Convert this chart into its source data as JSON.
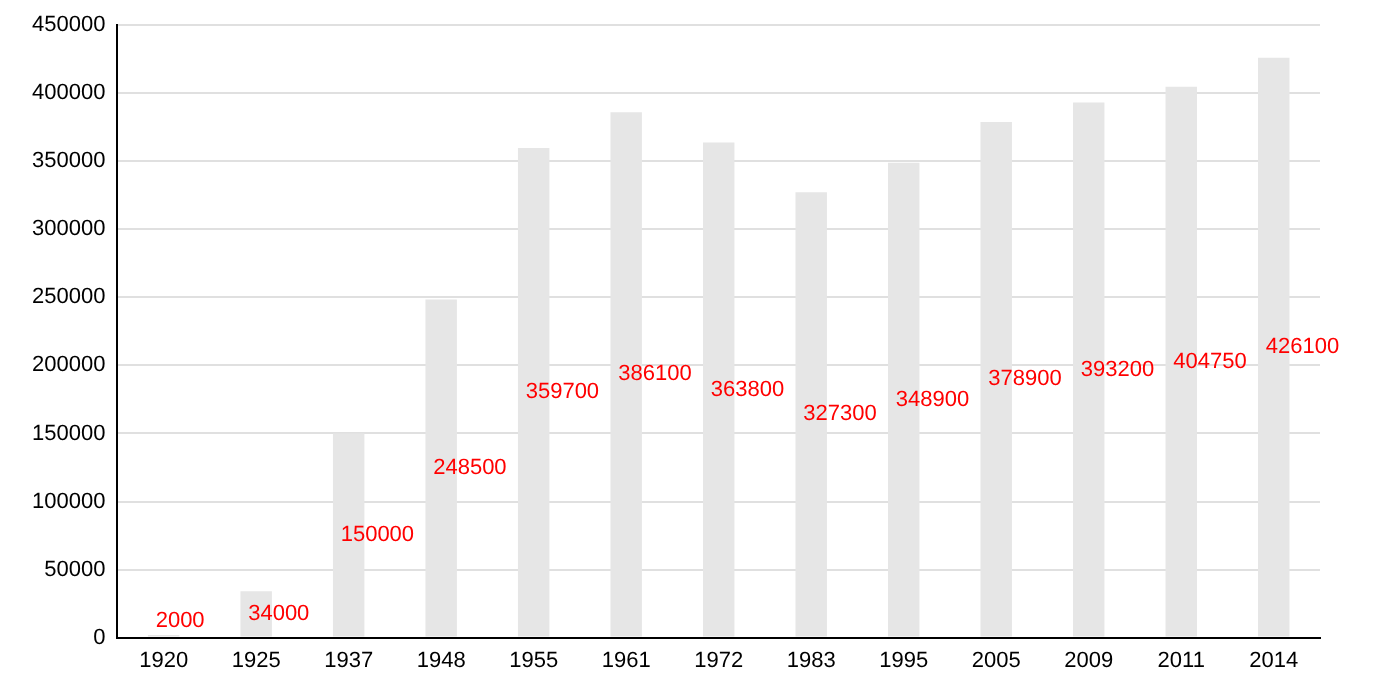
{
  "chart_data": {
    "type": "bar",
    "categories": [
      "1920",
      "1925",
      "1937",
      "1948",
      "1955",
      "1961",
      "1972",
      "1983",
      "1995",
      "2005",
      "2009",
      "2011",
      "2014"
    ],
    "values": [
      2000,
      34000,
      150000,
      248500,
      359700,
      386100,
      363800,
      327300,
      348900,
      378900,
      393200,
      404750,
      426100
    ],
    "color": "#e6e6e6",
    "ylim": [
      0,
      450000
    ],
    "yticks": [
      0,
      50000,
      100000,
      150000,
      200000,
      250000,
      300000,
      350000,
      400000,
      450000
    ],
    "grid": "y",
    "data_labels": true,
    "legend": false
  }
}
